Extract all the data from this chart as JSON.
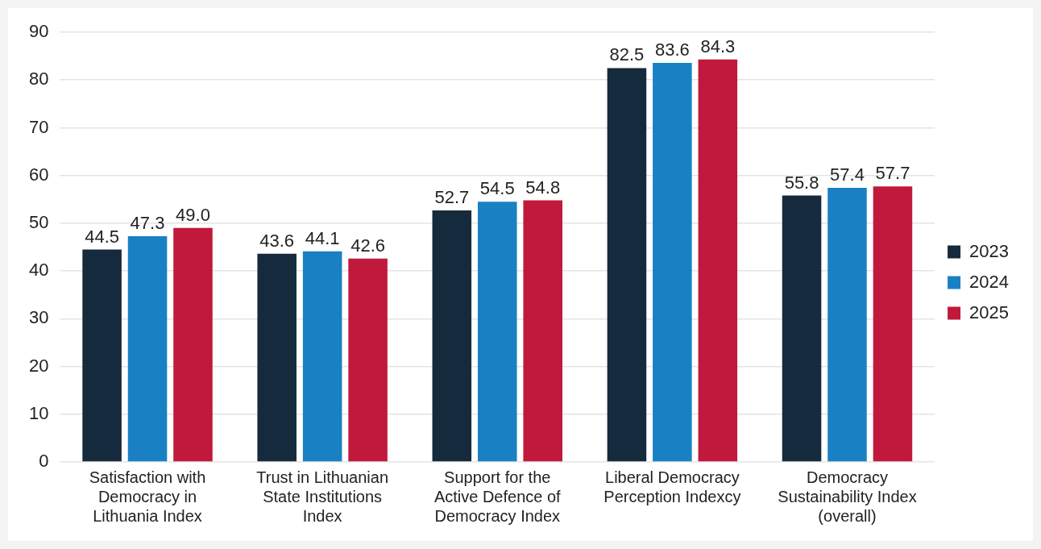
{
  "chart_data": {
    "type": "bar",
    "categories": [
      "Satisfaction with Democracy in Lithuania Index",
      "Trust in Lithuanian State Institutions Index",
      "Support for the Active Defence of Democracy Index",
      "Liberal Democracy Perception Indexcy",
      "Democracy Sustainability Index (overall)"
    ],
    "series": [
      {
        "name": "2023",
        "color": "#152a3c",
        "values": [
          44.5,
          43.6,
          52.7,
          82.5,
          55.8
        ],
        "value_labels": [
          "44.5",
          "43.6",
          "52.7",
          "82.5",
          "55.8"
        ]
      },
      {
        "name": "2024",
        "color": "#1a80c4",
        "values": [
          47.3,
          44.1,
          54.5,
          83.6,
          57.4
        ],
        "value_labels": [
          "47.3",
          "44.1",
          "54.5",
          "83.6",
          "57.4"
        ]
      },
      {
        "name": "2025",
        "color": "#c0193c",
        "values": [
          49.0,
          42.6,
          54.8,
          84.3,
          57.7
        ],
        "value_labels": [
          "49.0",
          "42.6",
          "54.8",
          "84.3",
          "57.7"
        ]
      }
    ],
    "ylim": [
      0,
      90
    ],
    "yticks": [
      0,
      10,
      20,
      30,
      40,
      50,
      60,
      70,
      80,
      90
    ],
    "grid": "y",
    "legend": "right"
  }
}
